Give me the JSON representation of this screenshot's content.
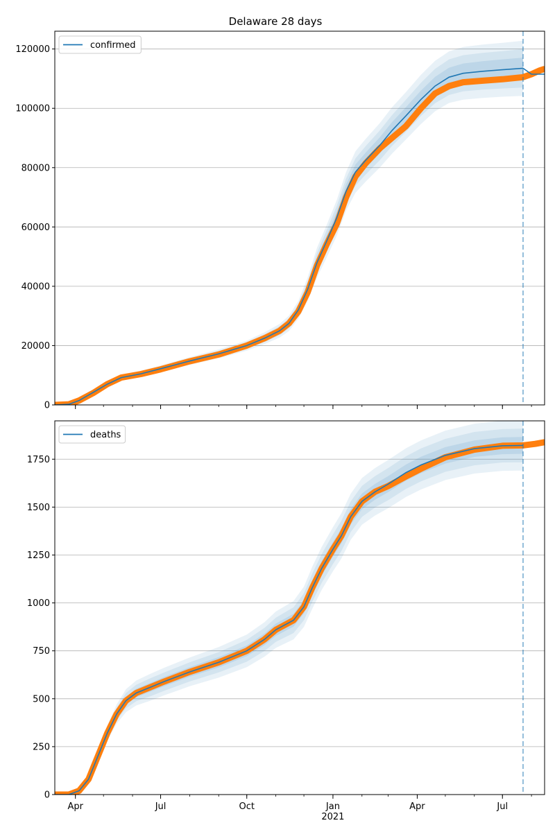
{
  "chart_data": [
    {
      "type": "line",
      "title": "Delaware 28 days",
      "x_type": "date",
      "xlim": [
        "2020-03-10",
        "2021-08-15"
      ],
      "ylim": [
        0,
        126000
      ],
      "yticks": [
        0,
        20000,
        40000,
        60000,
        80000,
        100000,
        120000
      ],
      "ytick_labels": [
        "0",
        "20000",
        "40000",
        "60000",
        "80000",
        "100000",
        "120000"
      ],
      "grid": "horizontal",
      "legend": {
        "placement": "upper-left",
        "entries": [
          "confirmed"
        ]
      },
      "forecast_start": "2021-07-23",
      "series": [
        {
          "name": "confirmed",
          "kind": "fitted",
          "color": "#1f77b4",
          "points": [
            [
              "2020-03-10",
              0
            ],
            [
              "2020-03-25",
              200
            ],
            [
              "2020-04-05",
              1500
            ],
            [
              "2020-04-20",
              4200
            ],
            [
              "2020-05-05",
              7000
            ],
            [
              "2020-05-20",
              9200
            ],
            [
              "2020-06-10",
              10500
            ],
            [
              "2020-07-01",
              12200
            ],
            [
              "2020-08-01",
              14800
            ],
            [
              "2020-09-01",
              17200
            ],
            [
              "2020-10-01",
              20000
            ],
            [
              "2020-10-20",
              22500
            ],
            [
              "2020-11-05",
              25000
            ],
            [
              "2020-11-15",
              27500
            ],
            [
              "2020-11-25",
              32000
            ],
            [
              "2020-12-05",
              39000
            ],
            [
              "2020-12-15",
              48000
            ],
            [
              "2020-12-25",
              55000
            ],
            [
              "2021-01-05",
              63000
            ],
            [
              "2021-01-15",
              72000
            ],
            [
              "2021-01-25",
              78500
            ],
            [
              "2021-02-05",
              82500
            ],
            [
              "2021-02-20",
              87500
            ],
            [
              "2021-03-05",
              92500
            ],
            [
              "2021-03-20",
              97500
            ],
            [
              "2021-04-05",
              103000
            ],
            [
              "2021-04-20",
              107500
            ],
            [
              "2021-05-05",
              110500
            ],
            [
              "2021-05-20",
              111800
            ],
            [
              "2021-06-10",
              112500
            ],
            [
              "2021-07-01",
              113000
            ],
            [
              "2021-07-23",
              113500
            ],
            [
              "2021-08-01",
              111500
            ],
            [
              "2021-08-15",
              111500
            ]
          ]
        },
        {
          "name": "",
          "kind": "observed",
          "color": "#ff7f0e",
          "points": [
            [
              "2020-03-10",
              0
            ],
            [
              "2020-03-25",
              200
            ],
            [
              "2020-04-05",
              1500
            ],
            [
              "2020-04-20",
              4000
            ],
            [
              "2020-05-05",
              7000
            ],
            [
              "2020-05-20",
              9200
            ],
            [
              "2020-06-10",
              10400
            ],
            [
              "2020-07-01",
              12000
            ],
            [
              "2020-08-01",
              14700
            ],
            [
              "2020-09-01",
              17000
            ],
            [
              "2020-10-01",
              20000
            ],
            [
              "2020-10-20",
              22500
            ],
            [
              "2020-11-05",
              25000
            ],
            [
              "2020-11-15",
              27500
            ],
            [
              "2020-11-25",
              31500
            ],
            [
              "2020-12-05",
              38000
            ],
            [
              "2020-12-15",
              47000
            ],
            [
              "2020-12-25",
              54000
            ],
            [
              "2021-01-05",
              61000
            ],
            [
              "2021-01-15",
              70000
            ],
            [
              "2021-01-25",
              77000
            ],
            [
              "2021-02-05",
              81500
            ],
            [
              "2021-02-20",
              86500
            ],
            [
              "2021-03-05",
              90000
            ],
            [
              "2021-03-20",
              94000
            ],
            [
              "2021-04-05",
              100000
            ],
            [
              "2021-04-20",
              105000
            ],
            [
              "2021-05-05",
              107500
            ],
            [
              "2021-05-20",
              108800
            ],
            [
              "2021-06-10",
              109300
            ],
            [
              "2021-07-01",
              109800
            ],
            [
              "2021-07-23",
              110500
            ],
            [
              "2021-08-01",
              111500
            ],
            [
              "2021-08-10",
              112800
            ],
            [
              "2021-08-14",
              113200
            ]
          ]
        }
      ],
      "bands": [
        {
          "half_width": [
            0,
            150,
            300,
            500,
            700,
            900,
            1000,
            1100,
            1300,
            1500,
            1700,
            2000,
            2300,
            2600,
            3000,
            4000,
            5000,
            5500,
            6000,
            6500,
            7000,
            7200,
            7500,
            7800,
            8000,
            8300,
            8500,
            8700,
            8900,
            9000,
            9100,
            9300
          ]
        },
        {
          "half_width": [
            0,
            100,
            200,
            350,
            450,
            550,
            650,
            750,
            850,
            1000,
            1100,
            1300,
            1500,
            1700,
            2000,
            2700,
            3300,
            3700,
            4000,
            4300,
            4600,
            4800,
            5000,
            5200,
            5400,
            5600,
            5800,
            6000,
            6100,
            6200,
            6300,
            6500
          ]
        },
        {
          "half_width": [
            0,
            50,
            100,
            200,
            250,
            300,
            350,
            400,
            450,
            550,
            600,
            700,
            800,
            900,
            1100,
            1400,
            1700,
            1900,
            2100,
            2300,
            2500,
            2600,
            2700,
            2800,
            2900,
            3000,
            3100,
            3200,
            3300,
            3400,
            3500,
            3600
          ]
        }
      ]
    },
    {
      "type": "line",
      "x_type": "date",
      "xlim": [
        "2020-03-10",
        "2021-08-15"
      ],
      "ylim": [
        0,
        1950
      ],
      "yticks": [
        0,
        250,
        500,
        750,
        1000,
        1250,
        1500,
        1750
      ],
      "ytick_labels": [
        "0",
        "250",
        "500",
        "750",
        "1000",
        "1250",
        "1500",
        "1750"
      ],
      "xticks": [
        "2020-04-01",
        "2020-07-01",
        "2020-10-01",
        "2021-01-01",
        "2021-04-01",
        "2021-07-01"
      ],
      "xtick_labels": [
        "Apr",
        "Jul",
        "Oct",
        "Jan",
        "Apr",
        "Jul"
      ],
      "xtick_sublabels": {
        "2021-01-01": "2021"
      },
      "grid": "horizontal",
      "legend": {
        "placement": "upper-left",
        "entries": [
          "deaths"
        ]
      },
      "forecast_start": "2021-07-23",
      "series": [
        {
          "name": "deaths",
          "kind": "fitted",
          "color": "#1f77b4",
          "points": [
            [
              "2020-03-10",
              0
            ],
            [
              "2020-03-25",
              0
            ],
            [
              "2020-04-05",
              20
            ],
            [
              "2020-04-15",
              80
            ],
            [
              "2020-04-25",
              200
            ],
            [
              "2020-05-05",
              320
            ],
            [
              "2020-05-15",
              420
            ],
            [
              "2020-05-25",
              490
            ],
            [
              "2020-06-05",
              530
            ],
            [
              "2020-06-20",
              560
            ],
            [
              "2020-07-05",
              590
            ],
            [
              "2020-08-01",
              640
            ],
            [
              "2020-09-01",
              690
            ],
            [
              "2020-10-01",
              750
            ],
            [
              "2020-10-20",
              810
            ],
            [
              "2020-11-01",
              860
            ],
            [
              "2020-11-20",
              910
            ],
            [
              "2020-12-01",
              980
            ],
            [
              "2020-12-10",
              1080
            ],
            [
              "2020-12-20",
              1180
            ],
            [
              "2021-01-01",
              1280
            ],
            [
              "2021-01-10",
              1350
            ],
            [
              "2021-01-20",
              1450
            ],
            [
              "2021-02-01",
              1530
            ],
            [
              "2021-02-15",
              1580
            ],
            [
              "2021-03-01",
              1620
            ],
            [
              "2021-03-20",
              1680
            ],
            [
              "2021-04-05",
              1720
            ],
            [
              "2021-05-01",
              1770
            ],
            [
              "2021-06-01",
              1805
            ],
            [
              "2021-07-01",
              1820
            ],
            [
              "2021-07-23",
              1822
            ]
          ]
        },
        {
          "name": "",
          "kind": "observed",
          "color": "#ff7f0e",
          "points": [
            [
              "2020-03-10",
              0
            ],
            [
              "2020-03-25",
              0
            ],
            [
              "2020-04-05",
              20
            ],
            [
              "2020-04-15",
              80
            ],
            [
              "2020-04-25",
              200
            ],
            [
              "2020-05-05",
              320
            ],
            [
              "2020-05-15",
              420
            ],
            [
              "2020-05-25",
              490
            ],
            [
              "2020-06-05",
              530
            ],
            [
              "2020-06-20",
              560
            ],
            [
              "2020-07-05",
              590
            ],
            [
              "2020-08-01",
              640
            ],
            [
              "2020-09-01",
              690
            ],
            [
              "2020-10-01",
              750
            ],
            [
              "2020-10-20",
              810
            ],
            [
              "2020-11-01",
              860
            ],
            [
              "2020-11-20",
              910
            ],
            [
              "2020-12-01",
              980
            ],
            [
              "2020-12-10",
              1080
            ],
            [
              "2020-12-20",
              1180
            ],
            [
              "2021-01-01",
              1280
            ],
            [
              "2021-01-10",
              1350
            ],
            [
              "2021-01-20",
              1450
            ],
            [
              "2021-02-01",
              1530
            ],
            [
              "2021-02-15",
              1580
            ],
            [
              "2021-03-01",
              1610
            ],
            [
              "2021-03-20",
              1660
            ],
            [
              "2021-04-05",
              1700
            ],
            [
              "2021-05-01",
              1760
            ],
            [
              "2021-06-01",
              1800
            ],
            [
              "2021-07-01",
              1820
            ],
            [
              "2021-07-23",
              1822
            ],
            [
              "2021-08-05",
              1830
            ],
            [
              "2021-08-14",
              1838
            ]
          ]
        }
      ],
      "bands": [
        {
          "half_width": [
            0,
            0,
            5,
            15,
            30,
            40,
            50,
            60,
            65,
            70,
            72,
            75,
            80,
            85,
            90,
            95,
            100,
            105,
            110,
            112,
            115,
            118,
            120,
            122,
            124,
            126,
            127,
            128,
            129,
            130,
            131,
            131
          ]
        },
        {
          "half_width": [
            0,
            0,
            3,
            10,
            20,
            27,
            33,
            40,
            43,
            47,
            48,
            50,
            53,
            57,
            60,
            63,
            67,
            70,
            73,
            75,
            77,
            79,
            80,
            81,
            82,
            84,
            85,
            86,
            86,
            87,
            87,
            88
          ]
        },
        {
          "half_width": [
            0,
            0,
            2,
            5,
            10,
            13,
            17,
            20,
            22,
            23,
            24,
            25,
            27,
            28,
            30,
            32,
            33,
            35,
            37,
            38,
            38,
            39,
            40,
            41,
            41,
            42,
            42,
            43,
            43,
            43,
            44,
            44
          ]
        }
      ]
    }
  ]
}
